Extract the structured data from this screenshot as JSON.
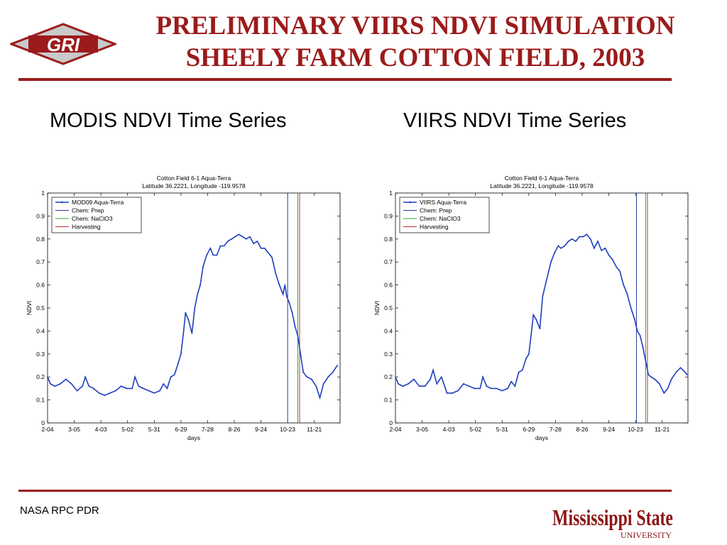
{
  "header": {
    "title_line1": "PRELIMINARY VIIRS NDVI SIMULATION",
    "title_line2": "SHEELY FARM COTTON FIELD, 2003",
    "logo_text": "GRI"
  },
  "panels": {
    "left_title": "MODIS NDVI Time Series",
    "right_title": "VIIRS NDVI Time Series"
  },
  "footer": {
    "left_text": "NASA RPC PDR",
    "university_name": "Mississippi State",
    "university_sub": "UNIVERSITY"
  },
  "colors": {
    "accent": "#9b1b1b",
    "series": "#1f3fbf",
    "prep_line": "#2a3aa0",
    "naclo3_line": "#33a033",
    "harvest_line": "#c03030"
  },
  "chart_data": [
    {
      "type": "line",
      "title": "Cotton Field 6-1 Aqua-Terra",
      "subtitle": "Latitude 36.2221, Longitude -119.9578",
      "xlabel": "days",
      "ylabel": "NDVI",
      "x_ticks": [
        "2-04",
        "3-05",
        "4-03",
        "5-02",
        "5-31",
        "6-29",
        "7-28",
        "8-26",
        "9-24",
        "10-23",
        "11-21"
      ],
      "y_ticks": [
        "0",
        "0.1",
        "0.2",
        "0.3",
        "0.4",
        "0.5",
        "0.6",
        "0.7",
        "0.8",
        "0.9",
        "1"
      ],
      "ylim": [
        0,
        1
      ],
      "legend": [
        "MOD09 Aqua-Terra",
        "Chem: Prep",
        "Chem: NaClO3",
        "Harvesting"
      ],
      "legend_position": "top-left",
      "series": [
        {
          "name": "MOD09 Aqua-Terra",
          "points": [
            [
              0,
              0.2
            ],
            [
              3,
              0.17
            ],
            [
              8,
              0.16
            ],
            [
              14,
              0.17
            ],
            [
              20,
              0.19
            ],
            [
              26,
              0.17
            ],
            [
              32,
              0.14
            ],
            [
              38,
              0.16
            ],
            [
              41,
              0.2
            ],
            [
              45,
              0.16
            ],
            [
              50,
              0.15
            ],
            [
              56,
              0.13
            ],
            [
              62,
              0.12
            ],
            [
              68,
              0.13
            ],
            [
              74,
              0.14
            ],
            [
              80,
              0.16
            ],
            [
              86,
              0.15
            ],
            [
              92,
              0.15
            ],
            [
              95,
              0.2
            ],
            [
              99,
              0.16
            ],
            [
              104,
              0.15
            ],
            [
              110,
              0.14
            ],
            [
              116,
              0.13
            ],
            [
              122,
              0.14
            ],
            [
              126,
              0.17
            ],
            [
              130,
              0.15
            ],
            [
              134,
              0.2
            ],
            [
              138,
              0.21
            ],
            [
              142,
              0.26
            ],
            [
              145,
              0.3
            ],
            [
              148,
              0.4
            ],
            [
              150,
              0.48
            ],
            [
              153,
              0.45
            ],
            [
              157,
              0.39
            ],
            [
              160,
              0.5
            ],
            [
              163,
              0.56
            ],
            [
              166,
              0.6
            ],
            [
              169,
              0.68
            ],
            [
              173,
              0.73
            ],
            [
              177,
              0.76
            ],
            [
              180,
              0.73
            ],
            [
              184,
              0.73
            ],
            [
              188,
              0.77
            ],
            [
              192,
              0.77
            ],
            [
              196,
              0.79
            ],
            [
              200,
              0.8
            ],
            [
              204,
              0.81
            ],
            [
              208,
              0.82
            ],
            [
              212,
              0.81
            ],
            [
              216,
              0.8
            ],
            [
              220,
              0.81
            ],
            [
              224,
              0.78
            ],
            [
              228,
              0.79
            ],
            [
              232,
              0.76
            ],
            [
              236,
              0.76
            ],
            [
              240,
              0.74
            ],
            [
              244,
              0.72
            ],
            [
              248,
              0.65
            ],
            [
              252,
              0.6
            ],
            [
              256,
              0.56
            ],
            [
              258,
              0.6
            ],
            [
              260,
              0.55
            ],
            [
              263,
              0.52
            ],
            [
              266,
              0.48
            ],
            [
              269,
              0.42
            ],
            [
              272,
              0.38
            ],
            [
              275,
              0.3
            ],
            [
              278,
              0.22
            ],
            [
              282,
              0.2
            ],
            [
              287,
              0.19
            ],
            [
              292,
              0.16
            ],
            [
              296,
              0.11
            ],
            [
              300,
              0.17
            ],
            [
              305,
              0.2
            ],
            [
              310,
              0.22
            ],
            [
              315,
              0.25
            ]
          ]
        }
      ],
      "vertical_markers": [
        {
          "name": "Chem: Prep",
          "x": 261
        },
        {
          "name": "Chem: NaClO3",
          "x": 272
        },
        {
          "name": "Harvesting",
          "x": 274
        }
      ]
    },
    {
      "type": "line",
      "title": "Cotton Field 6-1 Aqua-Terra",
      "subtitle": "Latitude 36.2221, Longitude -119.9578",
      "xlabel": "days",
      "ylabel": "NDVI",
      "x_ticks": [
        "2-04",
        "3-05",
        "4-03",
        "5-02",
        "5-31",
        "6-29",
        "7-28",
        "8-26",
        "9-24",
        "10-23",
        "11-21"
      ],
      "y_ticks": [
        "0",
        "0.1",
        "0.2",
        "0.3",
        "0.4",
        "0.5",
        "0.6",
        "0.7",
        "0.8",
        "0.9",
        "1"
      ],
      "ylim": [
        0,
        1
      ],
      "legend": [
        "VIIRS Aqua-Terra",
        "Chem: Prep",
        "Chem: NaClO3",
        "Harvesting"
      ],
      "legend_position": "top-left",
      "series": [
        {
          "name": "VIIRS Aqua-Terra",
          "points": [
            [
              0,
              0.2
            ],
            [
              3,
              0.17
            ],
            [
              8,
              0.16
            ],
            [
              14,
              0.17
            ],
            [
              20,
              0.19
            ],
            [
              26,
              0.16
            ],
            [
              32,
              0.16
            ],
            [
              38,
              0.19
            ],
            [
              41,
              0.23
            ],
            [
              45,
              0.17
            ],
            [
              50,
              0.2
            ],
            [
              56,
              0.13
            ],
            [
              62,
              0.13
            ],
            [
              68,
              0.14
            ],
            [
              74,
              0.17
            ],
            [
              80,
              0.16
            ],
            [
              86,
              0.15
            ],
            [
              92,
              0.15
            ],
            [
              95,
              0.2
            ],
            [
              99,
              0.16
            ],
            [
              104,
              0.15
            ],
            [
              110,
              0.15
            ],
            [
              116,
              0.14
            ],
            [
              122,
              0.15
            ],
            [
              126,
              0.18
            ],
            [
              130,
              0.16
            ],
            [
              134,
              0.22
            ],
            [
              138,
              0.23
            ],
            [
              142,
              0.28
            ],
            [
              145,
              0.3
            ],
            [
              148,
              0.4
            ],
            [
              150,
              0.47
            ],
            [
              153,
              0.45
            ],
            [
              157,
              0.41
            ],
            [
              160,
              0.55
            ],
            [
              163,
              0.6
            ],
            [
              166,
              0.65
            ],
            [
              169,
              0.7
            ],
            [
              173,
              0.74
            ],
            [
              177,
              0.77
            ],
            [
              180,
              0.76
            ],
            [
              184,
              0.77
            ],
            [
              188,
              0.79
            ],
            [
              192,
              0.8
            ],
            [
              196,
              0.79
            ],
            [
              200,
              0.81
            ],
            [
              204,
              0.81
            ],
            [
              208,
              0.82
            ],
            [
              212,
              0.8
            ],
            [
              216,
              0.76
            ],
            [
              220,
              0.79
            ],
            [
              224,
              0.75
            ],
            [
              228,
              0.76
            ],
            [
              232,
              0.73
            ],
            [
              236,
              0.71
            ],
            [
              240,
              0.68
            ],
            [
              244,
              0.66
            ],
            [
              248,
              0.6
            ],
            [
              252,
              0.56
            ],
            [
              256,
              0.5
            ],
            [
              260,
              0.45
            ],
            [
              263,
              0.4
            ],
            [
              266,
              0.38
            ],
            [
              269,
              0.33
            ],
            [
              272,
              0.27
            ],
            [
              275,
              0.21
            ],
            [
              278,
              0.2
            ],
            [
              282,
              0.19
            ],
            [
              287,
              0.17
            ],
            [
              292,
              0.13
            ],
            [
              296,
              0.15
            ],
            [
              300,
              0.19
            ],
            [
              305,
              0.22
            ],
            [
              310,
              0.24
            ],
            [
              315,
              0.22
            ],
            [
              317,
              0.21
            ]
          ]
        }
      ],
      "vertical_markers": [
        {
          "name": "Chem: Prep",
          "x": 262
        },
        {
          "name": "Chem: NaClO3",
          "x": 272
        },
        {
          "name": "Harvesting",
          "x": 274
        }
      ]
    }
  ]
}
